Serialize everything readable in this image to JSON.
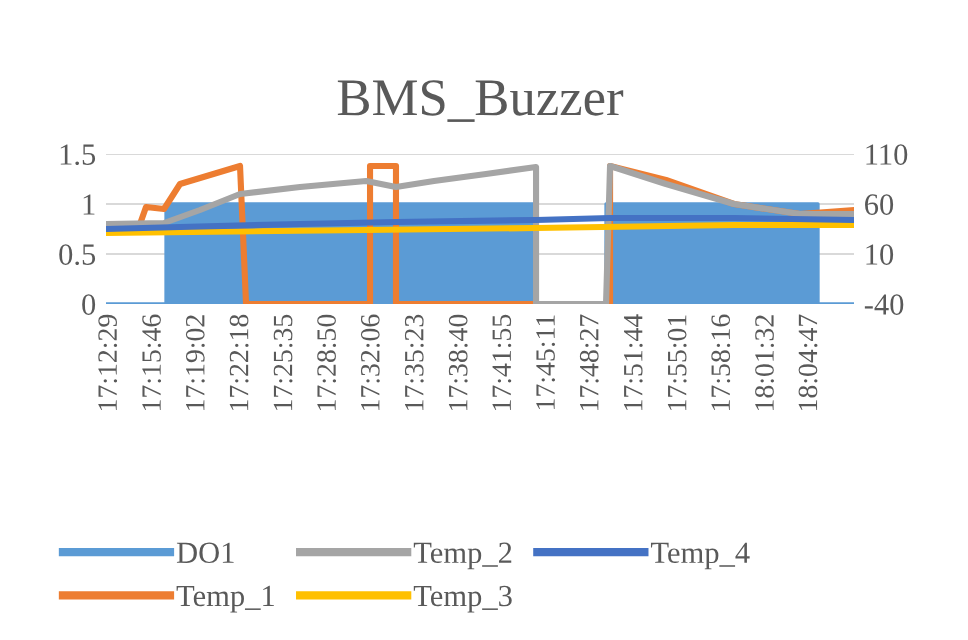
{
  "chart_data": {
    "type": "line",
    "title": "BMS_Buzzer",
    "series": [
      {
        "name": "DO1",
        "type": "area",
        "color": "#5b9bd5",
        "x": [
          17.2031,
          17.2778,
          17.2778,
          17.7383,
          17.7383,
          17.8254,
          17.8254,
          18.0892,
          18.0892,
          18.134
        ],
        "values": [
          0,
          0,
          1,
          1,
          0,
          0,
          1,
          1,
          0,
          0
        ]
      },
      {
        "name": "Temp_1",
        "axis": "y2",
        "color": "#ed7d31",
        "x": [
          17.2454,
          17.2529,
          17.2753,
          17.2952,
          17.345,
          17.3699,
          17.3774,
          17.5317,
          17.5317,
          17.564,
          17.564,
          17.7383,
          17.8304,
          17.8304,
          17.9,
          17.9847,
          18.0668,
          18.134
        ],
        "values": [
          40,
          57,
          55,
          80,
          92,
          98,
          -40,
          -40,
          98,
          98,
          -40,
          -40,
          -40,
          98,
          84,
          60,
          50,
          54
        ]
      },
      {
        "name": "Temp_2",
        "axis": "y2",
        "color": "#a5a5a5",
        "x": [
          17.2031,
          17.2753,
          17.3201,
          17.345,
          17.3699,
          17.4446,
          17.5267,
          17.564,
          17.6113,
          17.676,
          17.7383,
          17.7383,
          17.8254,
          17.8304,
          17.9,
          17.9847,
          18.0668,
          18.134
        ],
        "values": [
          40,
          41,
          54,
          62,
          70,
          77,
          83,
          77,
          83,
          90,
          97,
          -40,
          -40,
          98,
          80,
          60,
          50,
          50
        ]
      },
      {
        "name": "Temp_3",
        "axis": "y2",
        "color": "#ffc000",
        "x": [
          17.2031,
          17.5267,
          17.7383,
          17.9847,
          18.134
        ],
        "values": [
          31,
          34,
          36,
          39,
          39
        ]
      },
      {
        "name": "Temp_4",
        "axis": "y2",
        "color": "#4472c4",
        "x": [
          17.2031,
          17.2952,
          17.4446,
          17.564,
          17.7383,
          17.8304,
          17.9847,
          18.134
        ],
        "values": [
          35,
          37,
          40,
          42,
          44,
          46,
          46,
          44
        ]
      }
    ],
    "xlim": [
      17.2031,
      18.134
    ],
    "xticks": [
      {
        "value": 17.2081,
        "label": "17:12:29"
      },
      {
        "value": 17.2628,
        "label": "17:15:46"
      },
      {
        "value": 17.3172,
        "label": "17:19:02"
      },
      {
        "value": 17.3717,
        "label": "17:22:18"
      },
      {
        "value": 17.4264,
        "label": "17:25:35"
      },
      {
        "value": 17.4806,
        "label": "17:28:50"
      },
      {
        "value": 17.535,
        "label": "17:32:06"
      },
      {
        "value": 17.5897,
        "label": "17:35:23"
      },
      {
        "value": 17.6444,
        "label": "17:38:40"
      },
      {
        "value": 17.6986,
        "label": "17:41:55"
      },
      {
        "value": 17.7531,
        "label": "17:45:11"
      },
      {
        "value": 17.8075,
        "label": "17:48:27"
      },
      {
        "value": 17.8622,
        "label": "17:51:44"
      },
      {
        "value": 17.9169,
        "label": "17:55:01"
      },
      {
        "value": 17.9711,
        "label": "17:58:16"
      },
      {
        "value": 18.0256,
        "label": "18:01:32"
      },
      {
        "value": 18.0797,
        "label": "18:04:47"
      }
    ],
    "ylim": [
      0,
      1.5
    ],
    "yticks": [
      0,
      0.5,
      1,
      1.5
    ],
    "y2lim": [
      -40,
      110
    ],
    "y2ticks": [
      -40,
      10,
      60,
      110
    ],
    "grid": "y",
    "legend": "bottom",
    "line_style": "solid"
  }
}
